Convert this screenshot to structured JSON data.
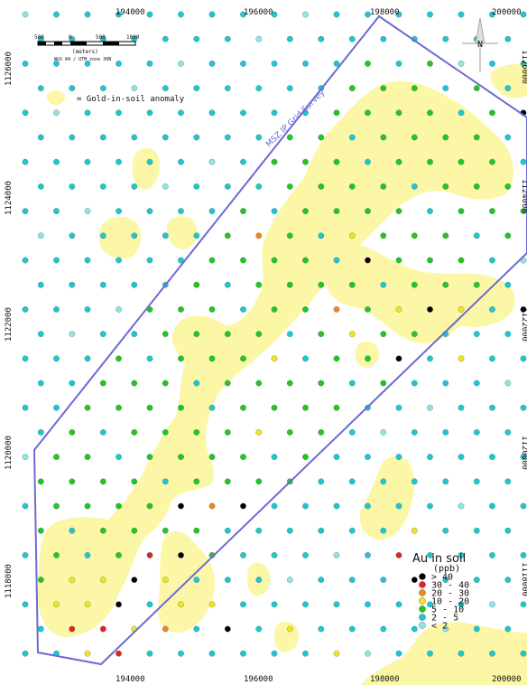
{
  "map": {
    "x_ticks": [
      "194000",
      "196000",
      "198000",
      "200000"
    ],
    "y_ticks": [
      "1126000",
      "1124000",
      "1122000",
      "1120000",
      "1118000"
    ],
    "right_edge_labels": [
      "1126000",
      "1124000",
      "1122000",
      "1120000",
      "1118000"
    ],
    "scale_bar": {
      "labels": [
        "500",
        "0",
        "500",
        "1000"
      ],
      "unit": "(meters)",
      "datum": "WGS 84 / UTM zone 30N"
    },
    "north_arrow": "N",
    "anomaly_legend_text": "= Gold-in-soil anomaly",
    "survey_label": "MSZ IP Grid Survey",
    "legend": {
      "title": "Au in soil",
      "unit": "(ppb)",
      "classes": [
        {
          "label": "> 40",
          "color": "#000000"
        },
        {
          "label": "30 - 40",
          "color": "#e32222"
        },
        {
          "label": "20 - 30",
          "color": "#f0871e"
        },
        {
          "label": "10 - 20",
          "color": "#f0e61e"
        },
        {
          "label": "5 - 10",
          "color": "#1ec81e"
        },
        {
          "label": "2 - 5",
          "color": "#19c8d2"
        },
        {
          "label": "< 2",
          "color": "#8ce6e6"
        }
      ]
    },
    "colors": {
      "anomaly_fill": "#fbf7a6",
      "survey_outline": "#6b6bd6",
      "background": "#ffffff"
    }
  }
}
